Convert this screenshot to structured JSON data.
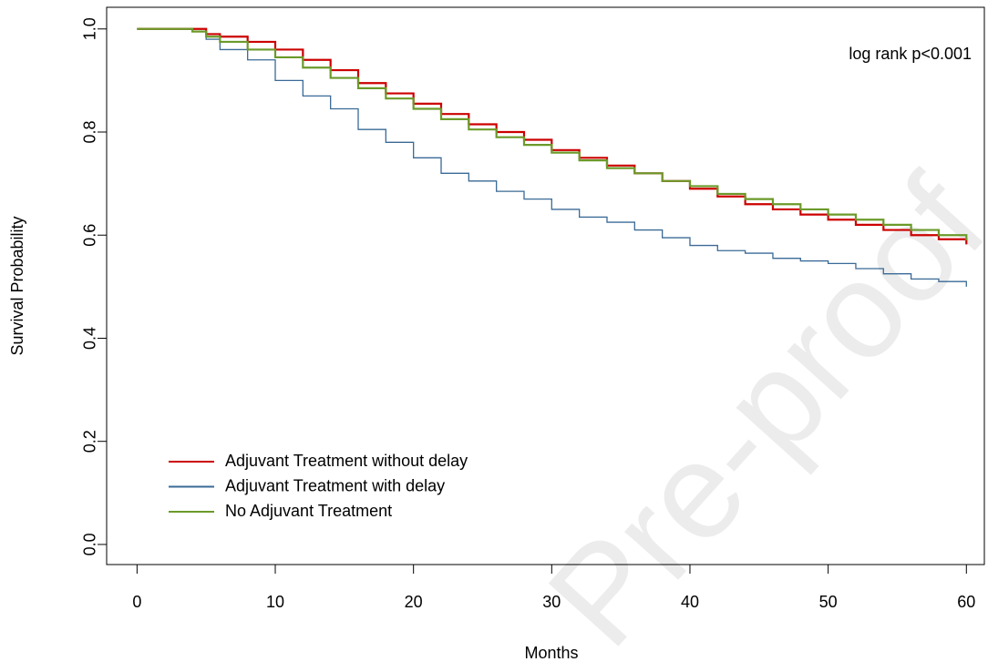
{
  "chart_data": {
    "type": "line",
    "xlabel": "Months",
    "ylabel": "Survival Probability",
    "annotation": "log rank p<0.001",
    "watermark": "Pre-proof",
    "x": [
      0,
      3,
      4,
      5,
      6,
      8,
      10,
      12,
      14,
      16,
      18,
      20,
      22,
      24,
      26,
      28,
      30,
      32,
      34,
      36,
      38,
      40,
      42,
      44,
      46,
      48,
      50,
      52,
      54,
      56,
      58,
      60
    ],
    "series": [
      {
        "name": "Adjuvant Treatment without delay",
        "color": "#cc0000",
        "values": [
          1,
          1,
          1,
          0.99,
          0.985,
          0.975,
          0.96,
          0.94,
          0.92,
          0.895,
          0.875,
          0.855,
          0.835,
          0.815,
          0.8,
          0.785,
          0.765,
          0.75,
          0.735,
          0.72,
          0.705,
          0.69,
          0.675,
          0.66,
          0.65,
          0.64,
          0.63,
          0.62,
          0.61,
          0.6,
          0.592,
          0.582
        ]
      },
      {
        "name": "Adjuvant Treatment with delay",
        "color": "#3a6a96",
        "values": [
          1,
          1,
          0.995,
          0.98,
          0.96,
          0.94,
          0.9,
          0.87,
          0.845,
          0.805,
          0.78,
          0.75,
          0.72,
          0.705,
          0.685,
          0.67,
          0.65,
          0.635,
          0.625,
          0.61,
          0.595,
          0.58,
          0.57,
          0.565,
          0.555,
          0.55,
          0.545,
          0.535,
          0.525,
          0.515,
          0.51,
          0.5
        ]
      },
      {
        "name": "No Adjuvant Treatment",
        "color": "#6b9a2a",
        "values": [
          1,
          1,
          0.995,
          0.985,
          0.975,
          0.96,
          0.945,
          0.925,
          0.905,
          0.885,
          0.865,
          0.845,
          0.825,
          0.805,
          0.79,
          0.775,
          0.76,
          0.745,
          0.73,
          0.72,
          0.705,
          0.695,
          0.68,
          0.67,
          0.66,
          0.65,
          0.64,
          0.63,
          0.62,
          0.61,
          0.6,
          0.59
        ]
      }
    ],
    "xlim": [
      -2.2,
      61.3
    ],
    "xticks": [
      0,
      10,
      20,
      30,
      40,
      50,
      60
    ],
    "ylim": [
      -0.039,
      1.042
    ],
    "yticks": [
      {
        "value": 0,
        "label": "0.0"
      },
      0.2,
      0.4,
      0.6,
      0.8,
      {
        "value": 1,
        "label": "1.0"
      }
    ],
    "legend": "bottom-left"
  }
}
